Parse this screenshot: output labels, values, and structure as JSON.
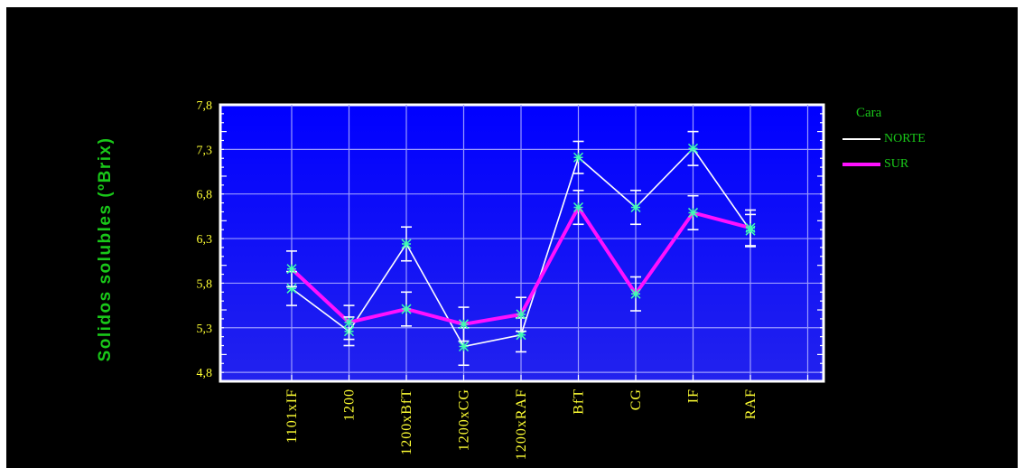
{
  "chart_data": {
    "type": "line",
    "title": "",
    "ylabel": "Solidos solubles (ºBrix)",
    "xlabel": "",
    "ylim": [
      4.7,
      7.8
    ],
    "yticks": [
      "4,8",
      "5,3",
      "5,8",
      "6,3",
      "6,8",
      "7,3",
      "7,8"
    ],
    "ytick_values": [
      4.8,
      5.3,
      5.8,
      6.3,
      6.8,
      7.3,
      7.8
    ],
    "categories": [
      "1101xIF",
      "1200",
      "1200xBfT",
      "1200xCG",
      "1200xRAF",
      "BfT",
      "CG",
      "IF",
      "RAF"
    ],
    "legend_title": "Cara",
    "legend_position": "right",
    "grid": true,
    "series": [
      {
        "name": "NORTE",
        "color": "#ffffff",
        "values": [
          5.74,
          5.26,
          6.24,
          5.09,
          5.22,
          7.21,
          6.65,
          7.31,
          6.39
        ],
        "errors": [
          0.19,
          0.16,
          0.19,
          0.21,
          0.19,
          0.18,
          0.19,
          0.19,
          0.18
        ]
      },
      {
        "name": "SUR",
        "color": "#ff10ff",
        "values": [
          5.96,
          5.36,
          5.51,
          5.34,
          5.45,
          6.65,
          5.68,
          6.59,
          6.42
        ],
        "errors": [
          0.2,
          0.19,
          0.19,
          0.19,
          0.19,
          0.19,
          0.19,
          0.19,
          0.2
        ]
      }
    ]
  },
  "colors": {
    "plot_bg_top": "#0000ff",
    "plot_bg_bottom": "#2222ee",
    "frame_bg": "#000000",
    "axis_text": "#ffff33",
    "title_text": "#19c819",
    "grid": "#9a9aff",
    "marker": "#40ffb0"
  }
}
